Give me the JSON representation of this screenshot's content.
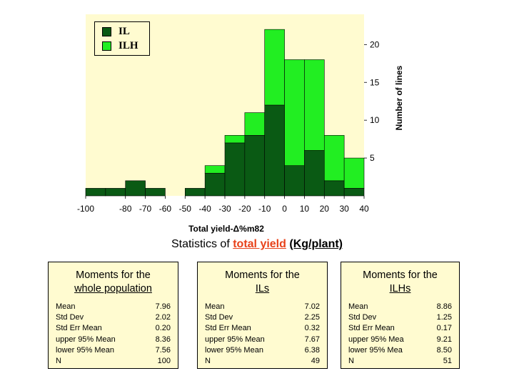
{
  "colors": {
    "plot_bg": "#fffbd0",
    "il": "#0a5a14",
    "ilh": "#22ee22",
    "highlight": "#e8421a"
  },
  "chart_data": {
    "type": "bar",
    "stacked": true,
    "bin_width": 10,
    "bins_start": [
      -100,
      -90,
      -80,
      -70,
      -60,
      -50,
      -40,
      -30,
      -20,
      -10,
      0,
      10,
      20,
      30
    ],
    "series": [
      {
        "name": "IL",
        "values": [
          1,
          1,
          2,
          1,
          0,
          1,
          3,
          7,
          8,
          12,
          4,
          6,
          2,
          1
        ]
      },
      {
        "name": "ILH",
        "values": [
          0,
          0,
          0,
          0,
          0,
          0,
          1,
          1,
          3,
          10,
          14,
          12,
          6,
          4
        ]
      }
    ],
    "xlim": [
      -100,
      40
    ],
    "ylim": [
      0,
      24
    ],
    "x_ticks": [
      "-100",
      "-80",
      "-70",
      "-60",
      "-50",
      "-40",
      "-30",
      "-20",
      "-10",
      "0",
      "10",
      "20",
      "30",
      "40"
    ],
    "x_tick_values": [
      -100,
      -80,
      -70,
      -60,
      -50,
      -40,
      -30,
      -20,
      -10,
      0,
      10,
      20,
      30,
      40
    ],
    "y_ticks": [
      "5",
      "10",
      "15",
      "20"
    ],
    "y_tick_values": [
      5,
      10,
      15,
      20
    ],
    "xlabel": "Total yield-Δ%m82",
    "ylabel": "Number of lines",
    "legend_position": "top-left",
    "grid": false
  },
  "legend": {
    "il": "IL",
    "ilh": "ILH"
  },
  "stats": {
    "title_pre": "Statistics of ",
    "title_highlight": "total yield",
    "title_unit": "(Kg/plant)",
    "boxes": [
      {
        "head1": "Moments for the",
        "head2": "whole population",
        "rows": [
          {
            "label": "Mean",
            "value": "7.96"
          },
          {
            "label": "Std Dev",
            "value": "2.02"
          },
          {
            "label": "Std Err Mean",
            "value": "0.20"
          },
          {
            "label": "upper 95% Mean",
            "value": "8.36"
          },
          {
            "label": "lower 95% Mean",
            "value": "7.56"
          },
          {
            "label": "N",
            "value": "100"
          }
        ]
      },
      {
        "head1": "Moments for the",
        "head2": "ILs",
        "rows": [
          {
            "label": "Mean",
            "value": "7.02"
          },
          {
            "label": "Std Dev",
            "value": "2.25"
          },
          {
            "label": "Std Err Mean",
            "value": "0.32"
          },
          {
            "label": "upper 95% Mean",
            "value": "7.67"
          },
          {
            "label": "lower 95% Mean",
            "value": "6.38"
          },
          {
            "label": "N",
            "value": "49"
          }
        ]
      },
      {
        "head1": "Moments for the",
        "head2": "ILHs",
        "rows": [
          {
            "label": "Mean",
            "value": "8.86"
          },
          {
            "label": "Std Dev",
            "value": "1.25"
          },
          {
            "label": "Std Err Mean",
            "value": "0.17"
          },
          {
            "label": "upper 95% Mea",
            "value": "9.21"
          },
          {
            "label": "lower 95% Mea",
            "value": "8.50"
          },
          {
            "label": "N",
            "value": "51"
          }
        ]
      }
    ]
  }
}
